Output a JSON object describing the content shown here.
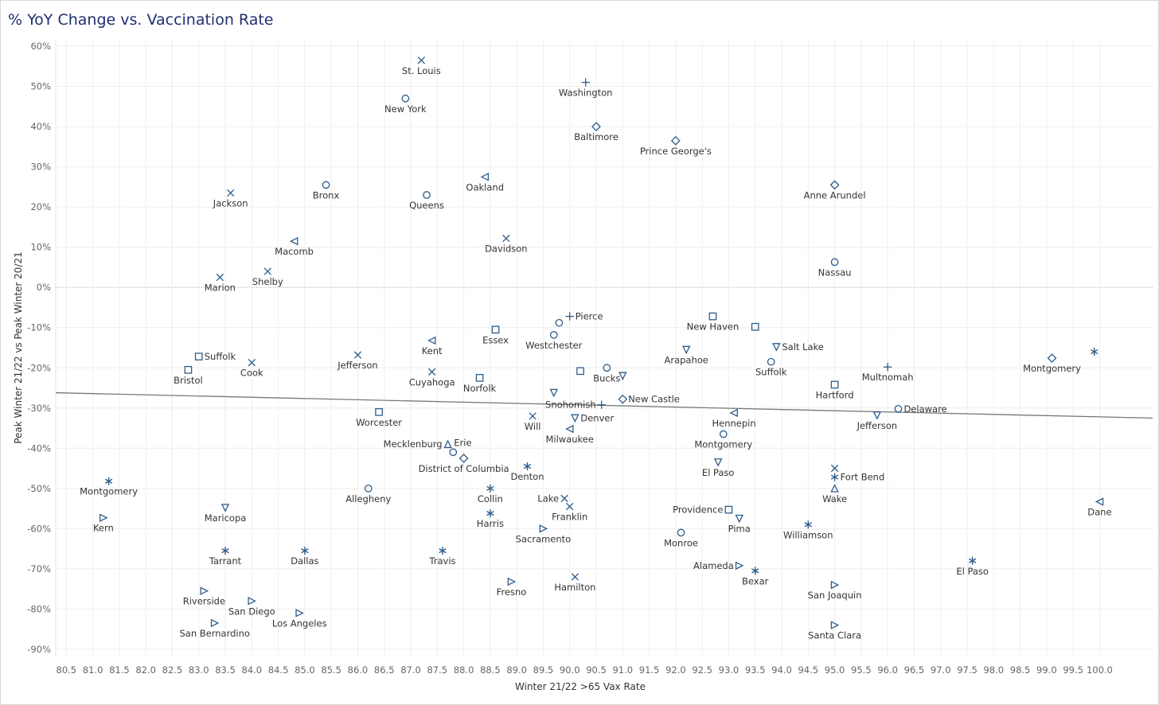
{
  "title": "% YoY Change vs. Vaccination Rate",
  "colors": {
    "marker": "#2e5c8a",
    "trend": "#777777",
    "grid": "#eeeeee",
    "title": "#1f3070"
  },
  "chart_data": {
    "type": "scatter",
    "title": "% YoY Change vs. Vaccination Rate",
    "xlabel": "Winter 21/22 >65 Vax Rate",
    "ylabel": "Peak Winter 21/22 vs Peak Winter 20/21",
    "xlim": [
      80.3,
      101.0
    ],
    "ylim": [
      -0.92,
      0.62
    ],
    "x_ticks": [
      "80.5",
      "81.0",
      "81.5",
      "82.0",
      "82.5",
      "83.0",
      "83.5",
      "84.0",
      "84.5",
      "85.0",
      "85.5",
      "86.0",
      "86.5",
      "87.0",
      "87.5",
      "88.0",
      "88.5",
      "89.0",
      "89.5",
      "90.0",
      "90.5",
      "91.0",
      "91.5",
      "92.0",
      "92.5",
      "93.0",
      "93.5",
      "94.0",
      "94.5",
      "95.0",
      "95.5",
      "96.0",
      "96.5",
      "97.0",
      "97.5",
      "98.0",
      "98.5",
      "99.0",
      "99.5",
      "100.0"
    ],
    "y_ticks": [
      "60%",
      "50%",
      "40%",
      "30%",
      "20%",
      "10%",
      "0%",
      "-10%",
      "-20%",
      "-30%",
      "-40%",
      "-50%",
      "-60%",
      "-70%",
      "-80%",
      "-90%"
    ],
    "grid": true,
    "trendline": {
      "x": [
        80.3,
        101.0
      ],
      "y": [
        -0.262,
        -0.325
      ]
    },
    "points": [
      {
        "name": "St. Louis",
        "x": 87.2,
        "y": 0.565,
        "m": "x",
        "pos": "below"
      },
      {
        "name": "New York",
        "x": 86.9,
        "y": 0.47,
        "m": "circle",
        "pos": "below"
      },
      {
        "name": "Washington",
        "x": 90.3,
        "y": 0.51,
        "m": "plus",
        "pos": "below"
      },
      {
        "name": "Baltimore",
        "x": 90.5,
        "y": 0.4,
        "m": "diamond",
        "pos": "below"
      },
      {
        "name": "Prince George's",
        "x": 92.0,
        "y": 0.365,
        "m": "diamond",
        "pos": "below"
      },
      {
        "name": "Anne Arundel",
        "x": 95.0,
        "y": 0.255,
        "m": "diamond",
        "pos": "below"
      },
      {
        "name": "Jackson",
        "x": 83.6,
        "y": 0.235,
        "m": "x",
        "pos": "below"
      },
      {
        "name": "Bronx",
        "x": 85.4,
        "y": 0.255,
        "m": "circle",
        "pos": "below"
      },
      {
        "name": "Queens",
        "x": 87.3,
        "y": 0.23,
        "m": "circle",
        "pos": "below"
      },
      {
        "name": "Oakland",
        "x": 88.4,
        "y": 0.275,
        "m": "tri-left",
        "pos": "below"
      },
      {
        "name": "Macomb",
        "x": 84.8,
        "y": 0.115,
        "m": "tri-left",
        "pos": "below"
      },
      {
        "name": "Davidson",
        "x": 88.8,
        "y": 0.122,
        "m": "x",
        "pos": "below"
      },
      {
        "name": "Shelby",
        "x": 84.3,
        "y": 0.04,
        "m": "x",
        "pos": "below"
      },
      {
        "name": "Marion",
        "x": 83.4,
        "y": 0.025,
        "m": "x",
        "pos": "below"
      },
      {
        "name": "Nassau",
        "x": 95.0,
        "y": 0.063,
        "m": "circle",
        "pos": "below"
      },
      {
        "name": "Pierce",
        "x": 90.0,
        "y": -0.072,
        "m": "plus",
        "pos": "right"
      },
      {
        "name": "Westchester",
        "x": 89.8,
        "y": -0.088,
        "m": "circle",
        "pos": "none"
      },
      {
        "name": "Westchester",
        "x": 89.7,
        "y": -0.118,
        "m": "circle",
        "pos": "below"
      },
      {
        "name": "New Haven",
        "x": 92.7,
        "y": -0.072,
        "m": "square",
        "pos": "below"
      },
      {
        "name": "",
        "x": 93.5,
        "y": -0.098,
        "m": "square",
        "pos": "none"
      },
      {
        "name": "Essex",
        "x": 88.6,
        "y": -0.105,
        "m": "square",
        "pos": "below"
      },
      {
        "name": "Kent",
        "x": 87.4,
        "y": -0.132,
        "m": "tri-left",
        "pos": "below"
      },
      {
        "name": "Salt Lake",
        "x": 93.9,
        "y": -0.148,
        "m": "tri-down",
        "pos": "right"
      },
      {
        "name": "Arapahoe",
        "x": 92.2,
        "y": -0.155,
        "m": "tri-down",
        "pos": "below"
      },
      {
        "name": "Suffolk",
        "x": 83.0,
        "y": -0.172,
        "m": "square",
        "pos": "right"
      },
      {
        "name": "Jefferson",
        "x": 86.0,
        "y": -0.168,
        "m": "x",
        "pos": "below"
      },
      {
        "name": "Cook",
        "x": 84.0,
        "y": -0.187,
        "m": "x",
        "pos": "below"
      },
      {
        "name": "Suffolk",
        "x": 93.8,
        "y": -0.185,
        "m": "circle",
        "pos": "below"
      },
      {
        "name": "Montgomery",
        "x": 99.1,
        "y": -0.176,
        "m": "diamond",
        "pos": "below"
      },
      {
        "name": "",
        "x": 99.9,
        "y": -0.16,
        "m": "star",
        "pos": "none"
      },
      {
        "name": "Multnomah",
        "x": 96.0,
        "y": -0.198,
        "m": "plus",
        "pos": "below"
      },
      {
        "name": "Bristol",
        "x": 82.8,
        "y": -0.205,
        "m": "square",
        "pos": "below"
      },
      {
        "name": "Cuyahoga",
        "x": 87.4,
        "y": -0.21,
        "m": "x",
        "pos": "below"
      },
      {
        "name": "",
        "x": 90.2,
        "y": -0.208,
        "m": "square",
        "pos": "none"
      },
      {
        "name": "Bucks",
        "x": 90.7,
        "y": -0.2,
        "m": "circle",
        "pos": "below"
      },
      {
        "name": "",
        "x": 91.0,
        "y": -0.22,
        "m": "tri-down",
        "pos": "none"
      },
      {
        "name": "Norfolk",
        "x": 88.3,
        "y": -0.225,
        "m": "square",
        "pos": "below"
      },
      {
        "name": "Hartford",
        "x": 95.0,
        "y": -0.242,
        "m": "square",
        "pos": "below"
      },
      {
        "name": "",
        "x": 89.7,
        "y": -0.262,
        "m": "tri-down",
        "pos": "none"
      },
      {
        "name": "New Castle",
        "x": 91.0,
        "y": -0.278,
        "m": "diamond",
        "pos": "right"
      },
      {
        "name": "Snohomish",
        "x": 90.6,
        "y": -0.292,
        "m": "plus",
        "pos": "left"
      },
      {
        "name": "Worcester",
        "x": 86.4,
        "y": -0.31,
        "m": "square",
        "pos": "below"
      },
      {
        "name": "Delaware",
        "x": 96.2,
        "y": -0.302,
        "m": "circle",
        "pos": "right"
      },
      {
        "name": "Hennepin",
        "x": 93.1,
        "y": -0.312,
        "m": "tri-left",
        "pos": "below"
      },
      {
        "name": "Will",
        "x": 89.3,
        "y": -0.32,
        "m": "x",
        "pos": "below"
      },
      {
        "name": "Denver",
        "x": 90.1,
        "y": -0.325,
        "m": "tri-down",
        "pos": "right"
      },
      {
        "name": "Jefferson",
        "x": 95.8,
        "y": -0.318,
        "m": "tri-down",
        "pos": "below"
      },
      {
        "name": "Milwaukee",
        "x": 90.0,
        "y": -0.352,
        "m": "tri-left",
        "pos": "below"
      },
      {
        "name": "Montgomery",
        "x": 92.9,
        "y": -0.365,
        "m": "circle",
        "pos": "below"
      },
      {
        "name": "Mecklenburg",
        "x": 87.7,
        "y": -0.39,
        "m": "tri-up",
        "pos": "left"
      },
      {
        "name": "Erie",
        "x": 87.8,
        "y": -0.41,
        "m": "circle",
        "pos": "above-right"
      },
      {
        "name": "District of Columbia",
        "x": 88.0,
        "y": -0.425,
        "m": "diamond",
        "pos": "below"
      },
      {
        "name": "Denton",
        "x": 89.2,
        "y": -0.445,
        "m": "star",
        "pos": "below"
      },
      {
        "name": "El Paso",
        "x": 92.8,
        "y": -0.435,
        "m": "tri-down",
        "pos": "below"
      },
      {
        "name": "",
        "x": 95.0,
        "y": -0.45,
        "m": "x",
        "pos": "none"
      },
      {
        "name": "Fort Bend",
        "x": 95.0,
        "y": -0.472,
        "m": "star",
        "pos": "right"
      },
      {
        "name": "Montgomery",
        "x": 81.3,
        "y": -0.482,
        "m": "star",
        "pos": "below"
      },
      {
        "name": "Allegheny",
        "x": 86.2,
        "y": -0.5,
        "m": "circle",
        "pos": "below"
      },
      {
        "name": "Collin",
        "x": 88.5,
        "y": -0.5,
        "m": "star",
        "pos": "below"
      },
      {
        "name": "Wake",
        "x": 95.0,
        "y": -0.5,
        "m": "tri-up",
        "pos": "below"
      },
      {
        "name": "Lake",
        "x": 89.9,
        "y": -0.525,
        "m": "x",
        "pos": "left"
      },
      {
        "name": "Franklin",
        "x": 90.0,
        "y": -0.545,
        "m": "x",
        "pos": "below"
      },
      {
        "name": "Dane",
        "x": 100.0,
        "y": -0.533,
        "m": "tri-left",
        "pos": "below"
      },
      {
        "name": "Maricopa",
        "x": 83.5,
        "y": -0.548,
        "m": "tri-down",
        "pos": "below"
      },
      {
        "name": "Providence",
        "x": 93.0,
        "y": -0.553,
        "m": "square",
        "pos": "left"
      },
      {
        "name": "Harris",
        "x": 88.5,
        "y": -0.562,
        "m": "star",
        "pos": "below"
      },
      {
        "name": "Kern",
        "x": 81.2,
        "y": -0.573,
        "m": "tri-right",
        "pos": "below"
      },
      {
        "name": "Pima",
        "x": 93.2,
        "y": -0.575,
        "m": "tri-down",
        "pos": "below"
      },
      {
        "name": "Williamson",
        "x": 94.5,
        "y": -0.59,
        "m": "star",
        "pos": "below"
      },
      {
        "name": "Sacramento",
        "x": 89.5,
        "y": -0.6,
        "m": "tri-right",
        "pos": "below"
      },
      {
        "name": "Monroe",
        "x": 92.1,
        "y": -0.61,
        "m": "circle",
        "pos": "below"
      },
      {
        "name": "Tarrant",
        "x": 83.5,
        "y": -0.655,
        "m": "star",
        "pos": "below"
      },
      {
        "name": "Dallas",
        "x": 85.0,
        "y": -0.655,
        "m": "star",
        "pos": "below"
      },
      {
        "name": "Travis",
        "x": 87.6,
        "y": -0.655,
        "m": "star",
        "pos": "below"
      },
      {
        "name": "El Paso",
        "x": 97.6,
        "y": -0.68,
        "m": "star",
        "pos": "below"
      },
      {
        "name": "Alameda",
        "x": 93.2,
        "y": -0.692,
        "m": "tri-right",
        "pos": "left"
      },
      {
        "name": "Bexar",
        "x": 93.5,
        "y": -0.705,
        "m": "star",
        "pos": "below"
      },
      {
        "name": "Hamilton",
        "x": 90.1,
        "y": -0.72,
        "m": "x",
        "pos": "below"
      },
      {
        "name": "Fresno",
        "x": 88.9,
        "y": -0.732,
        "m": "tri-right",
        "pos": "below"
      },
      {
        "name": "San Joaquin",
        "x": 95.0,
        "y": -0.74,
        "m": "tri-right",
        "pos": "below"
      },
      {
        "name": "Riverside",
        "x": 83.1,
        "y": -0.755,
        "m": "tri-right",
        "pos": "below"
      },
      {
        "name": "San Diego",
        "x": 84.0,
        "y": -0.78,
        "m": "tri-right",
        "pos": "below"
      },
      {
        "name": "Los Angeles",
        "x": 84.9,
        "y": -0.81,
        "m": "tri-right",
        "pos": "below"
      },
      {
        "name": "San Bernardino",
        "x": 83.3,
        "y": -0.835,
        "m": "tri-right",
        "pos": "below"
      },
      {
        "name": "Santa Clara",
        "x": 95.0,
        "y": -0.84,
        "m": "tri-right",
        "pos": "below"
      }
    ]
  }
}
